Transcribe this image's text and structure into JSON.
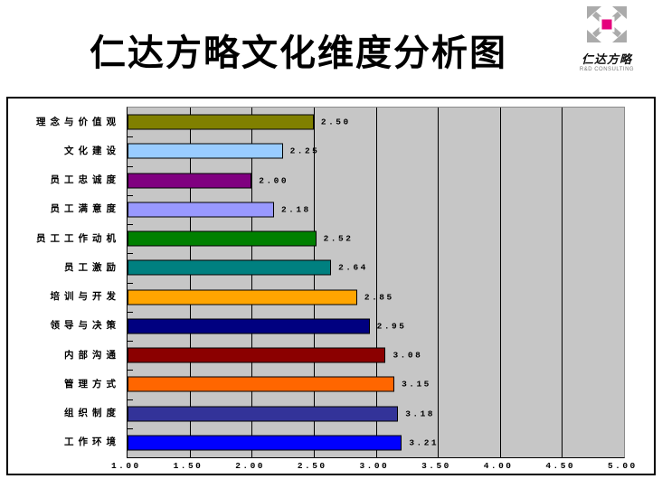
{
  "title": "仁达方略文化维度分析图",
  "logo": {
    "brand": "仁达方略",
    "tagline": "R&D CONSULTING",
    "accent_color": "#E5007D",
    "arrow_color": "#ABABAB"
  },
  "chart_data": {
    "type": "bar",
    "orientation": "horizontal",
    "title": "仁达方略文化维度分析图",
    "categories": [
      "理念与价值观",
      "文化建设",
      "员工忠诚度",
      "员工满意度",
      "员工工作动机",
      "员工激励",
      "培训与开发",
      "领导与决策",
      "内部沟通",
      "管理方式",
      "组织制度",
      "工作环境"
    ],
    "values": [
      2.5,
      2.25,
      2.0,
      2.18,
      2.52,
      2.64,
      2.85,
      2.95,
      3.08,
      3.15,
      3.18,
      3.21
    ],
    "value_labels": [
      "2.50",
      "2.25",
      "2.00",
      "2.18",
      "2.52",
      "2.64",
      "2.85",
      "2.95",
      "3.08",
      "3.15",
      "3.18",
      "3.21"
    ],
    "bar_colors": [
      "#808000",
      "#99CCFF",
      "#800080",
      "#9999FF",
      "#008000",
      "#008080",
      "#FFA500",
      "#000080",
      "#8B0000",
      "#FF6600",
      "#333399",
      "#0000FF"
    ],
    "xlim": [
      1.0,
      5.0
    ],
    "x_ticks": [
      "1.00",
      "1.50",
      "2.00",
      "2.50",
      "3.00",
      "3.50",
      "4.00",
      "4.50",
      "5.00"
    ],
    "grid": true,
    "legend": false,
    "plot_bg_color": "#C6C6C6",
    "gridline_color": "#000000",
    "bar_border_color": "#000000"
  }
}
